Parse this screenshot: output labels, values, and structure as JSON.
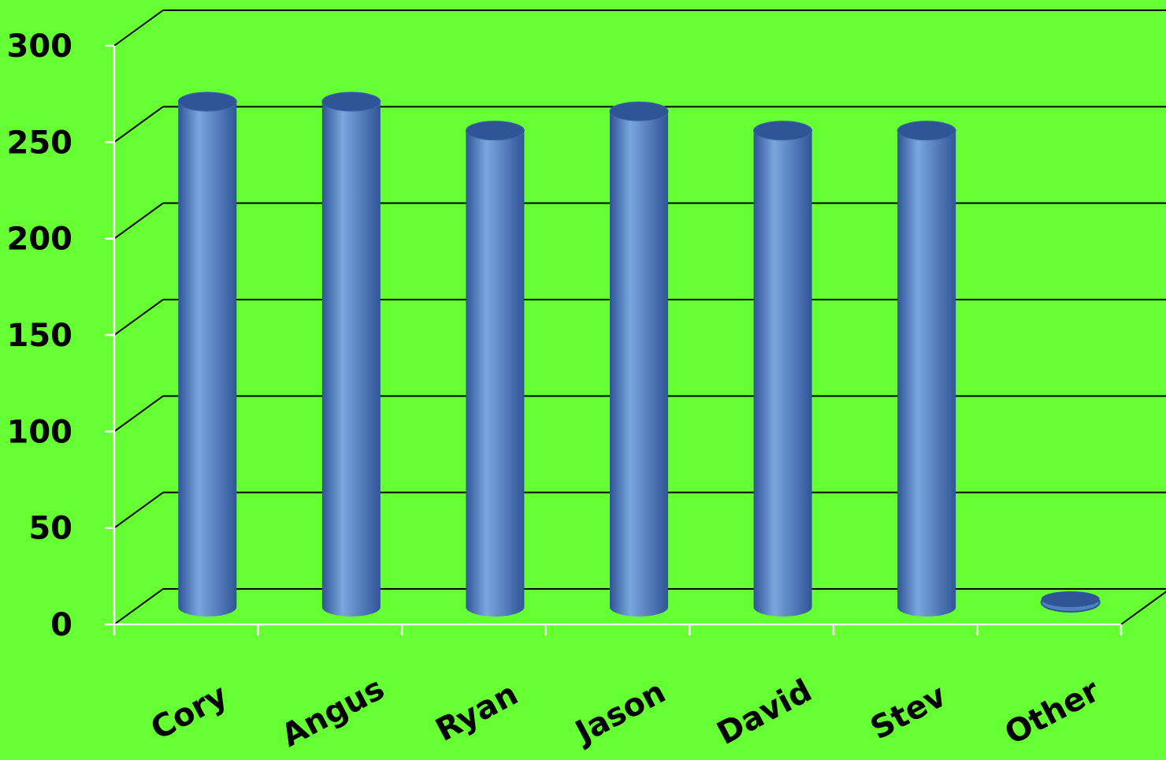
{
  "chart_data": {
    "type": "bar",
    "categories": [
      "Cory",
      "Angus",
      "Ryan",
      "Jason",
      "David",
      "Stev",
      "Other"
    ],
    "values": [
      262,
      262,
      247,
      257,
      247,
      247,
      5
    ],
    "ylim": [
      0,
      300
    ],
    "yticks": [
      "0",
      "50",
      "100",
      "150",
      "200",
      "250",
      "300"
    ],
    "grid": true,
    "style": "3d-cylinder",
    "colors": {
      "background": "#66ff33",
      "bar": "#4f81bd",
      "bar_dark": "#2f5597",
      "bar_light": "#7aa6dd",
      "gridline": "#000000",
      "axis": "#ffffff",
      "text": "#000000"
    }
  }
}
